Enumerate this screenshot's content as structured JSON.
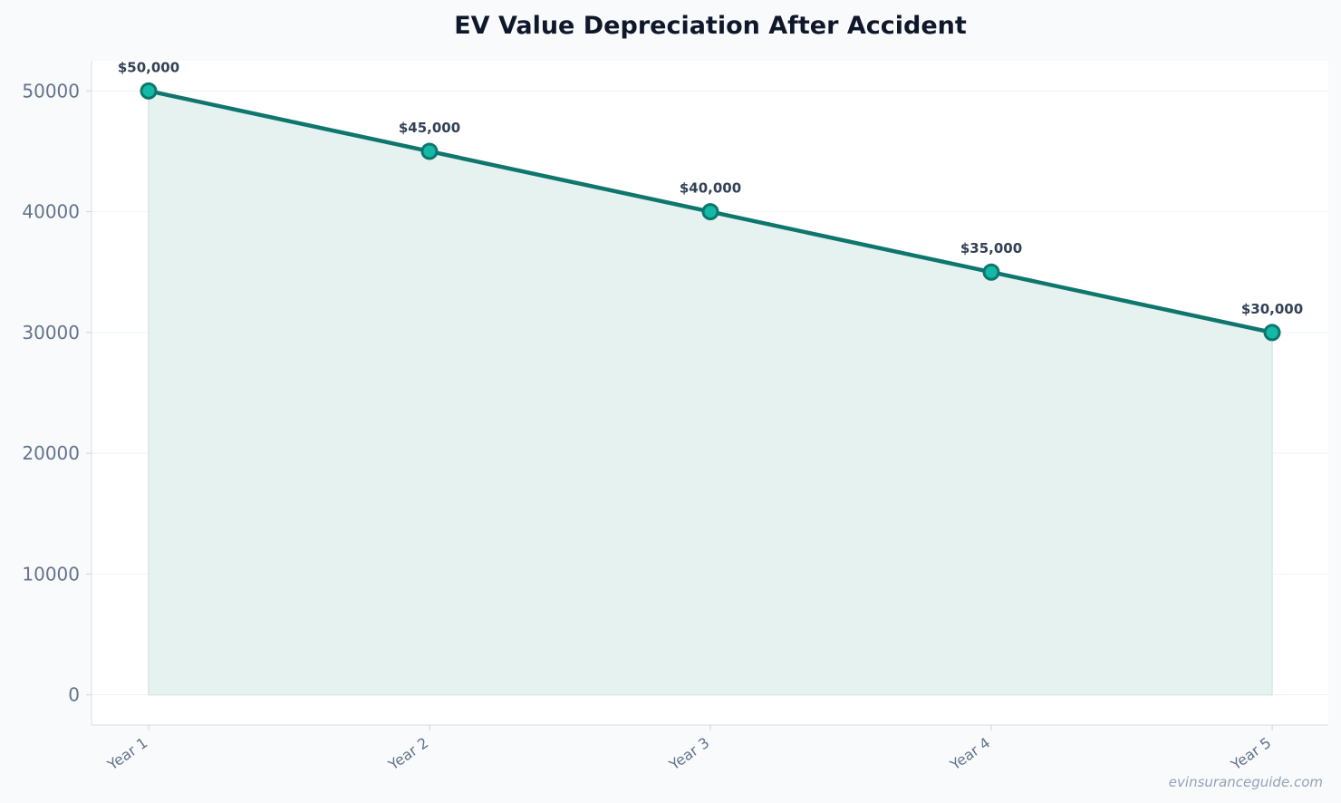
{
  "chart_data": {
    "type": "area",
    "title": "EV Value Depreciation After Accident",
    "xlabel": "",
    "ylabel": "",
    "categories": [
      "Year 1",
      "Year 2",
      "Year 3",
      "Year 4",
      "Year 5"
    ],
    "series": [
      {
        "values": [
          50000,
          45000,
          40000,
          35000,
          30000
        ],
        "point_labels": [
          "$50,000",
          "$45,000",
          "$40,000",
          "$35,000",
          "$30,000"
        ]
      }
    ],
    "ylim": [
      -2500,
      52500
    ],
    "yticks": [
      0,
      10000,
      20000,
      30000,
      40000,
      50000
    ],
    "ytick_labels": [
      "0",
      "10000",
      "20000",
      "30000",
      "40000",
      "50000"
    ],
    "grid": true,
    "legend": "none",
    "colors": {
      "line": "#0f766e",
      "marker_fill": "#14b8a6",
      "area_fill": "#e6f2ef",
      "grid": "#eef2f6",
      "axis": "#e2e8f0",
      "background": "#f8fafc",
      "plot_background": "#ffffff"
    }
  },
  "watermark": "evinsuranceguide.com"
}
